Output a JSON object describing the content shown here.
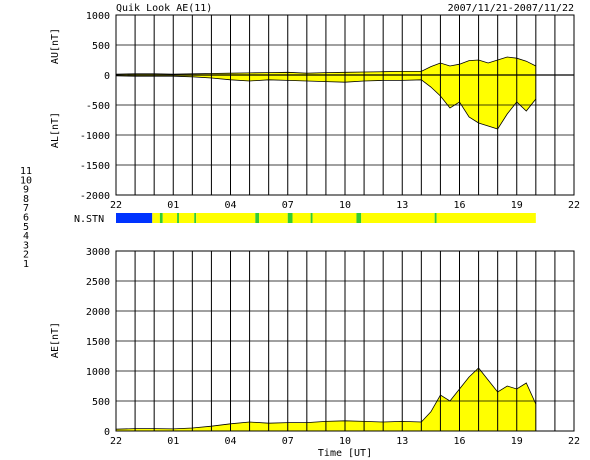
{
  "header": {
    "title": "Quik Look AE(11)",
    "date_range": "2007/11/21-2007/11/22"
  },
  "station_count_legend": {
    "items": [
      {
        "label": "11",
        "color": "#00cccc"
      },
      {
        "label": "10",
        "color": "#ff33cc"
      },
      {
        "label": "9",
        "color": "#3333cc"
      },
      {
        "label": "8",
        "color": "#ffcc99"
      },
      {
        "label": "7",
        "color": "#ffff00"
      },
      {
        "label": "6",
        "color": "#ff3333"
      },
      {
        "label": "5",
        "color": "#aaaaaa"
      },
      {
        "label": "4",
        "color": "#88cccc"
      },
      {
        "label": "3",
        "color": "#33cc99"
      },
      {
        "label": "2",
        "color": "#993366"
      },
      {
        "label": "1",
        "color": "#3333cc"
      }
    ]
  },
  "nstn_label": "N.STN",
  "chart_data": [
    {
      "type": "area",
      "id": "au-al",
      "ylabel_upper": "AU[nT]",
      "ylabel_lower": "AL[nT]",
      "xlabel": "",
      "ylim": [
        -2000,
        1000
      ],
      "yticks": [
        1000,
        500,
        0,
        -500,
        -1000,
        -1500,
        -2000
      ],
      "xlim": [
        0,
        24
      ],
      "xticks": [
        0,
        3,
        6,
        9,
        12,
        15,
        18,
        21,
        24
      ],
      "xtick_labels": [
        "22",
        "01",
        "04",
        "07",
        "10",
        "13",
        "16",
        "19",
        "22"
      ],
      "grid": true,
      "series": [
        {
          "role": "AU",
          "x": [
            0,
            1,
            2,
            3,
            4,
            5,
            6,
            7,
            8,
            9,
            10,
            11,
            12,
            13,
            14,
            15,
            16,
            16.5,
            17,
            17.5,
            18,
            18.5,
            19,
            19.5,
            20,
            20.5,
            21,
            21.5,
            22
          ],
          "y": [
            15,
            20,
            20,
            15,
            20,
            25,
            30,
            35,
            40,
            45,
            30,
            40,
            45,
            50,
            55,
            60,
            60,
            140,
            200,
            150,
            180,
            240,
            250,
            200,
            250,
            300,
            280,
            230,
            150
          ]
        },
        {
          "role": "AL",
          "x": [
            0,
            1,
            2,
            3,
            4,
            5,
            6,
            7,
            8,
            9,
            10,
            11,
            12,
            13,
            14,
            15,
            16,
            16.5,
            17,
            17.5,
            18,
            18.5,
            19,
            19.5,
            20,
            20.5,
            21,
            21.5,
            22
          ],
          "y": [
            -15,
            -20,
            -20,
            -20,
            -30,
            -50,
            -80,
            -100,
            -80,
            -90,
            -100,
            -110,
            -120,
            -100,
            -90,
            -90,
            -80,
            -200,
            -350,
            -550,
            -450,
            -700,
            -800,
            -850,
            -900,
            -650,
            -450,
            -600,
            -400
          ]
        }
      ]
    },
    {
      "type": "area",
      "id": "ae",
      "ylabel": "AE[nT]",
      "xlabel": "Time [UT]",
      "ylim": [
        0,
        3000
      ],
      "yticks": [
        3000,
        2500,
        2000,
        1500,
        1000,
        500,
        0
      ],
      "xlim": [
        0,
        24
      ],
      "xticks": [
        0,
        3,
        6,
        9,
        12,
        15,
        18,
        21,
        24
      ],
      "xtick_labels": [
        "22",
        "01",
        "04",
        "07",
        "10",
        "13",
        "16",
        "19",
        "22"
      ],
      "grid": true,
      "series": [
        {
          "role": "AE",
          "x": [
            0,
            1,
            2,
            3,
            4,
            5,
            6,
            7,
            8,
            9,
            10,
            11,
            12,
            13,
            14,
            15,
            16,
            16.5,
            17,
            17.5,
            18,
            18.5,
            19,
            19.5,
            20,
            20.5,
            21,
            21.5,
            22
          ],
          "y": [
            30,
            40,
            40,
            35,
            50,
            80,
            120,
            150,
            130,
            140,
            140,
            160,
            170,
            160,
            150,
            160,
            150,
            320,
            600,
            500,
            700,
            900,
            1050,
            850,
            650,
            750,
            700,
            800,
            450
          ]
        }
      ]
    },
    {
      "type": "heatmap",
      "id": "n-stn",
      "label": "N.STN",
      "xlim": [
        0,
        24
      ],
      "segments": [
        {
          "x0": 0.0,
          "x1": 1.9,
          "color": "#0033ff"
        },
        {
          "x0": 1.9,
          "x1": 2.3,
          "color": "#ffff00"
        },
        {
          "x0": 2.3,
          "x1": 2.45,
          "color": "#33cc33"
        },
        {
          "x0": 2.45,
          "x1": 3.2,
          "color": "#ffff00"
        },
        {
          "x0": 3.2,
          "x1": 3.3,
          "color": "#33cc33"
        },
        {
          "x0": 3.3,
          "x1": 4.1,
          "color": "#ffff00"
        },
        {
          "x0": 4.1,
          "x1": 4.2,
          "color": "#33cc33"
        },
        {
          "x0": 4.2,
          "x1": 7.3,
          "color": "#ffff00"
        },
        {
          "x0": 7.3,
          "x1": 7.5,
          "color": "#33cc33"
        },
        {
          "x0": 7.5,
          "x1": 9.0,
          "color": "#ffff00"
        },
        {
          "x0": 9.0,
          "x1": 9.25,
          "color": "#33cc33"
        },
        {
          "x0": 9.25,
          "x1": 10.2,
          "color": "#ffff00"
        },
        {
          "x0": 10.2,
          "x1": 10.3,
          "color": "#33cc33"
        },
        {
          "x0": 10.3,
          "x1": 12.6,
          "color": "#ffff00"
        },
        {
          "x0": 12.6,
          "x1": 12.85,
          "color": "#33cc33"
        },
        {
          "x0": 12.85,
          "x1": 16.7,
          "color": "#ffff00"
        },
        {
          "x0": 16.7,
          "x1": 16.8,
          "color": "#33cc33"
        },
        {
          "x0": 16.8,
          "x1": 22.0,
          "color": "#ffff00"
        }
      ]
    }
  ]
}
